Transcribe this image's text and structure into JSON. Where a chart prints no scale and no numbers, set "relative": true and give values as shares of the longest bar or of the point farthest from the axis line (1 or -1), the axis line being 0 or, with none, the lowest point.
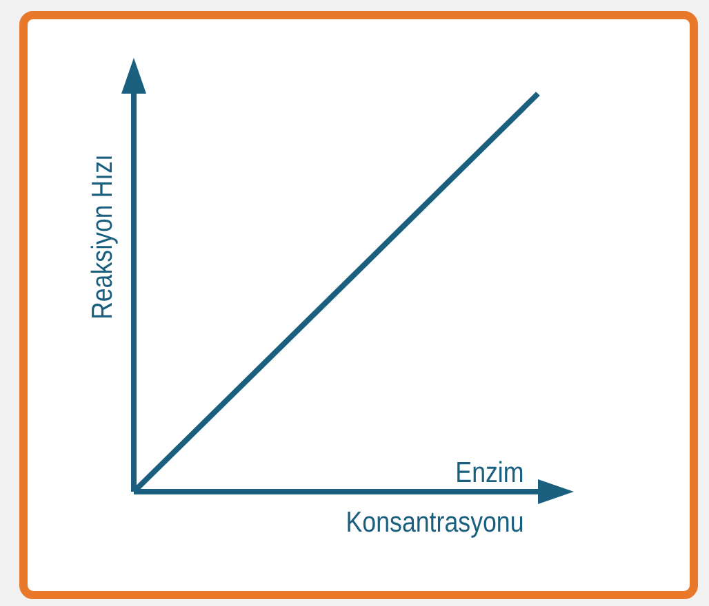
{
  "chart_data": {
    "type": "line",
    "relative": true,
    "xlabel": "Enzim\nKonsantrasyonu",
    "ylabel": "Reaksiyon Hızı",
    "categories": [
      null,
      null
    ],
    "values": [
      0,
      1
    ],
    "color": "#1b5f7e",
    "marker": "none"
  }
}
